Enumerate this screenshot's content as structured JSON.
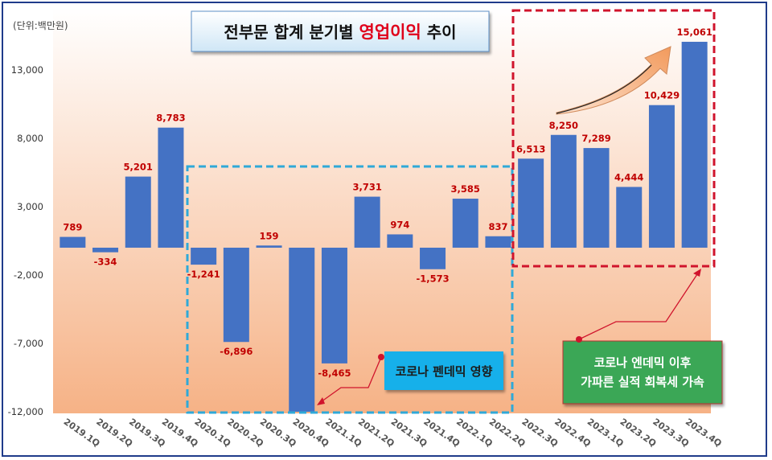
{
  "title": {
    "prefix": "전부문 합계 분기별 ",
    "highlight": "영업이익",
    "suffix": " 추이"
  },
  "unit_label": "(단위:백만원)",
  "colors": {
    "bar": "#4472c4",
    "value_label": "#c00000",
    "gradient_top": "#ffffff",
    "gradient_bottom": "#f6b286",
    "dashed_blue": "#2fa9d8",
    "dashed_red": "#d0142c",
    "callout_blue": "#12b0ea",
    "callout_green": "#3aa757",
    "arrow_fill": "#f5a56c",
    "title_highlight": "#e0001b"
  },
  "callouts": {
    "corona": "코로나 펜데믹 영향",
    "post_corona_line1": "코로나 엔데믹 이후",
    "post_corona_line2": "가파른 실적 회복세 가속"
  },
  "chart_data": {
    "type": "bar",
    "categories": [
      "2019.1Q",
      "2019.2Q",
      "2019.3Q",
      "2019.4Q",
      "2020.1Q",
      "2020.2Q",
      "2020.3Q",
      "2020.4Q",
      "2021.1Q",
      "2021.2Q",
      "2021.3Q",
      "2021.4Q",
      "2022.1Q",
      "2022.2Q",
      "2022.3Q",
      "2022.4Q",
      "2023.1Q",
      "2023.2Q",
      "2023.3Q",
      "2023.4Q"
    ],
    "values": [
      789,
      -334,
      5201,
      8783,
      -1241,
      -6896,
      159,
      -12000,
      -8465,
      3731,
      974,
      -1573,
      3585,
      837,
      6513,
      8250,
      7289,
      4444,
      10429,
      15061
    ],
    "value_labels": [
      "789",
      "-334",
      "5,201",
      "8,783",
      "-1,241",
      "-6,896",
      "159",
      "",
      "-8,465",
      "3,731",
      "974",
      "-1,573",
      "3,585",
      "837",
      "6,513",
      "8,250",
      "7,289",
      "4,444",
      "10,429",
      "15,061"
    ],
    "yticks": [
      13000,
      8000,
      3000,
      -2000,
      -7000,
      -12000
    ],
    "ytick_labels": [
      "13,000",
      "8,000",
      "3,000",
      "-2,000",
      "-7,000",
      "-12,000"
    ],
    "ylim": [
      -12000,
      16000
    ],
    "ylabel": "(단위:백만원)",
    "grid": false,
    "legend": "none"
  }
}
